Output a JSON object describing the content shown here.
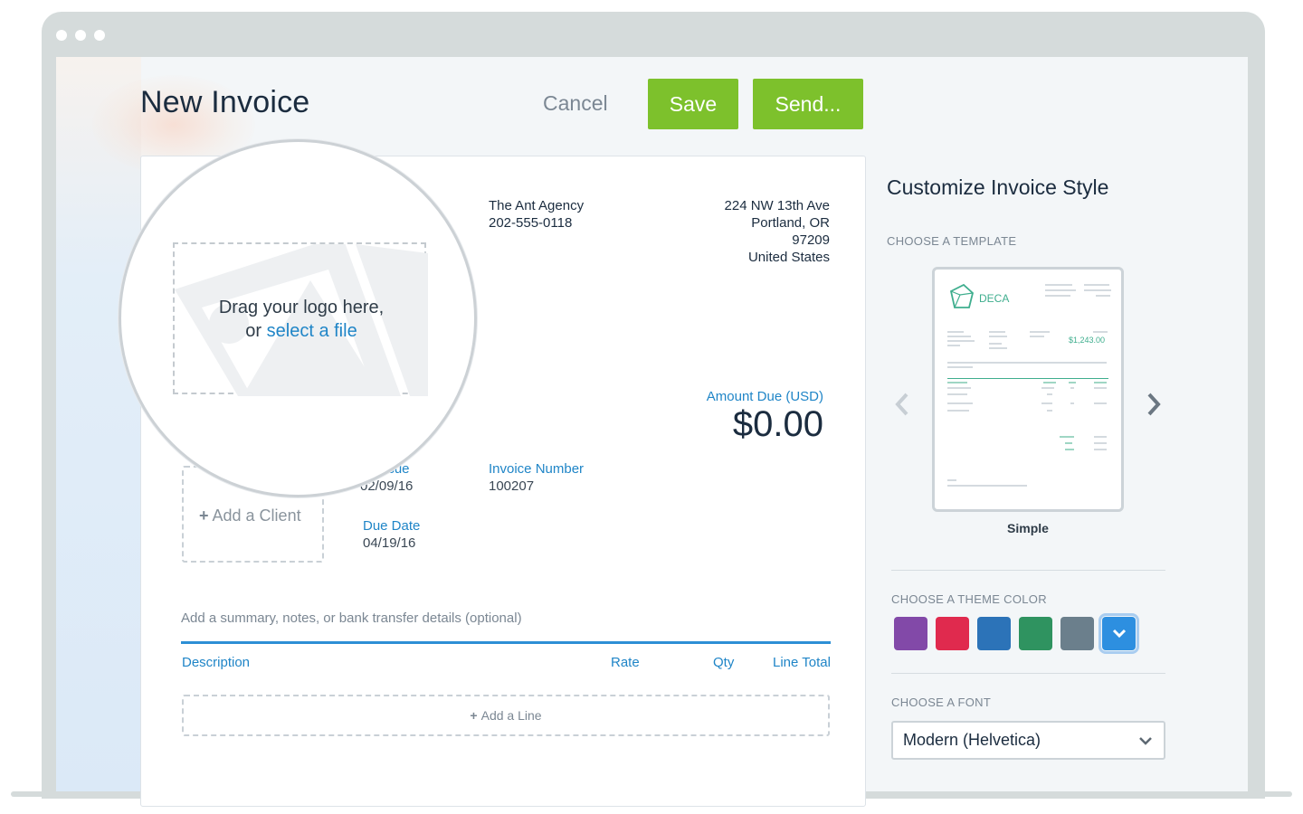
{
  "window": {
    "dots": [
      "close",
      "minimize",
      "maximize"
    ]
  },
  "header": {
    "title": "New Invoice",
    "cancel_label": "Cancel",
    "save_label": "Save",
    "send_label": "Send..."
  },
  "logo_drop": {
    "line1": "Drag your logo here,",
    "line2_prefix": "or ",
    "select_link": "select a file"
  },
  "business": {
    "name": "The Ant Agency",
    "phone": "202-555-0118",
    "address": [
      "224 NW 13th Ave",
      "Portland, OR",
      "97209",
      "United States"
    ]
  },
  "amount_due": {
    "label": "Amount Due (USD)",
    "value": "$0.00"
  },
  "invoice_fields": {
    "date_of_issue_label": "of Issue",
    "date_of_issue": "02/09/16",
    "invoice_number_label": "Invoice Number",
    "invoice_number": "100207",
    "due_date_label": "Due Date",
    "due_date": "04/19/16"
  },
  "client": {
    "add_label": "Add a Client"
  },
  "summary_placeholder": "Add a summary, notes, or bank transfer details (optional)",
  "line_items": {
    "columns": [
      "Description",
      "Rate",
      "Qty",
      "Line Total"
    ],
    "add_label": "Add a Line"
  },
  "customize": {
    "title": "Customize Invoice Style",
    "template_label": "CHOOSE A TEMPLATE",
    "template_name": "Simple",
    "template_preview": {
      "brand": "DECA",
      "amount": "$1,243.00"
    },
    "color_label": "CHOOSE A THEME COLOR",
    "colors": [
      "#8249a8",
      "#e02a4e",
      "#2c73b8",
      "#2f9360",
      "#6b7f8c",
      "#2d8fe0"
    ],
    "font_label": "CHOOSE A FONT",
    "font_value": "Modern (Helvetica)"
  }
}
